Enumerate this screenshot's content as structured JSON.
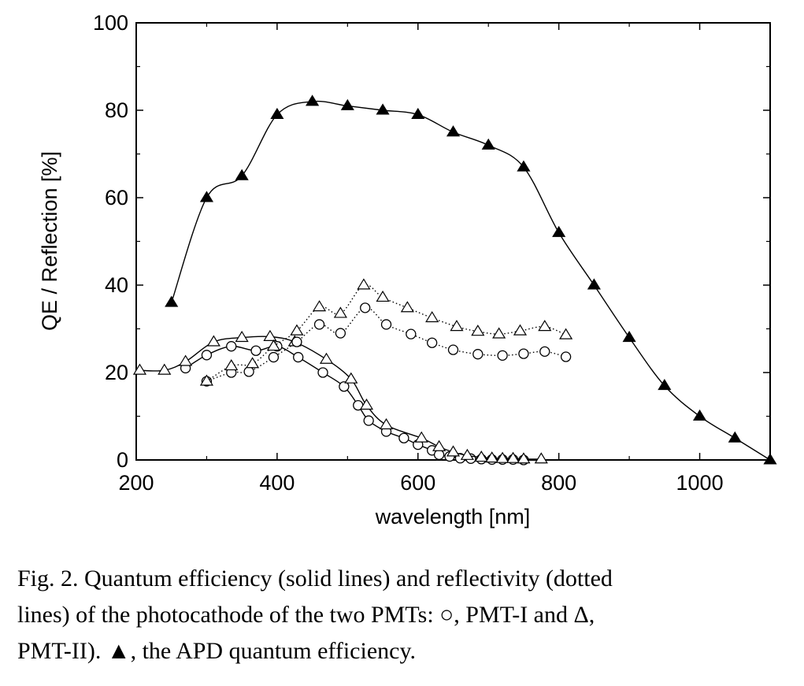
{
  "chart_data": {
    "type": "line",
    "title": "",
    "xlabel": "wavelength [nm]",
    "ylabel": "QE / Reflection  [%]",
    "xlim": [
      200,
      1100
    ],
    "ylim": [
      0,
      100
    ],
    "xticks": [
      200,
      400,
      600,
      800,
      1000
    ],
    "yticks": [
      0,
      20,
      40,
      60,
      80,
      100
    ],
    "grid": false,
    "legend": "none",
    "series": [
      {
        "key": "apd_qe",
        "line": "solid",
        "marker": "filled-triangle",
        "color": "#000000",
        "points": [
          [
            250,
            36
          ],
          [
            300,
            60
          ],
          [
            350,
            65
          ],
          [
            400,
            79
          ],
          [
            450,
            82
          ],
          [
            500,
            81
          ],
          [
            550,
            80
          ],
          [
            600,
            79
          ],
          [
            650,
            75
          ],
          [
            700,
            72
          ],
          [
            750,
            67
          ],
          [
            800,
            52
          ],
          [
            850,
            40
          ],
          [
            900,
            28
          ],
          [
            950,
            17
          ],
          [
            1000,
            10
          ],
          [
            1050,
            5
          ],
          [
            1100,
            0
          ]
        ]
      },
      {
        "key": "pmt1_qe",
        "line": "solid",
        "marker": "open-circle",
        "color": "#000000",
        "points": [
          [
            270,
            21
          ],
          [
            300,
            24
          ],
          [
            335,
            26
          ],
          [
            370,
            25
          ],
          [
            400,
            26
          ],
          [
            430,
            23.5
          ],
          [
            465,
            20
          ],
          [
            495,
            16.8
          ],
          [
            515,
            12.5
          ],
          [
            530,
            9
          ],
          [
            555,
            6.5
          ],
          [
            580,
            5
          ],
          [
            600,
            3.5
          ],
          [
            620,
            2.2
          ],
          [
            630,
            1.2
          ],
          [
            645,
            0.8
          ],
          [
            660,
            0.4
          ],
          [
            675,
            0.3
          ],
          [
            690,
            0.2
          ],
          [
            705,
            0.1
          ],
          [
            720,
            0.1
          ],
          [
            735,
            0.1
          ],
          [
            750,
            0
          ]
        ]
      },
      {
        "key": "pmt2_qe",
        "line": "solid",
        "marker": "open-triangle",
        "color": "#000000",
        "points": [
          [
            205,
            20.5
          ],
          [
            240,
            20.5
          ],
          [
            270,
            22.5
          ],
          [
            310,
            27
          ],
          [
            350,
            28
          ],
          [
            390,
            28.2
          ],
          [
            425,
            27
          ],
          [
            470,
            23
          ],
          [
            505,
            18.5
          ],
          [
            527,
            12.5
          ],
          [
            555,
            8
          ],
          [
            605,
            5
          ],
          [
            630,
            3
          ],
          [
            650,
            1.8
          ],
          [
            670,
            1
          ],
          [
            690,
            0.6
          ],
          [
            705,
            0.4
          ],
          [
            720,
            0.3
          ],
          [
            735,
            0.3
          ],
          [
            750,
            0.2
          ],
          [
            775,
            0.2
          ]
        ]
      },
      {
        "key": "pmt1_reflectivity",
        "line": "dotted",
        "marker": "open-circle",
        "color": "#000000",
        "points": [
          [
            300,
            18
          ],
          [
            335,
            20
          ],
          [
            360,
            20.2
          ],
          [
            395,
            23.5
          ],
          [
            428,
            27
          ],
          [
            460,
            31
          ],
          [
            490,
            29
          ],
          [
            525,
            34.8
          ],
          [
            555,
            31
          ],
          [
            590,
            28.8
          ],
          [
            620,
            26.8
          ],
          [
            650,
            25.2
          ],
          [
            685,
            24.2
          ],
          [
            720,
            23.9
          ],
          [
            750,
            24.3
          ],
          [
            780,
            24.8
          ],
          [
            810,
            23.6
          ]
        ]
      },
      {
        "key": "pmt2_reflectivity",
        "line": "dotted",
        "marker": "open-triangle",
        "color": "#000000",
        "points": [
          [
            300,
            18
          ],
          [
            335,
            21.5
          ],
          [
            365,
            22
          ],
          [
            395,
            26
          ],
          [
            428,
            29.5
          ],
          [
            460,
            35
          ],
          [
            490,
            33.5
          ],
          [
            523,
            40
          ],
          [
            550,
            37.2
          ],
          [
            585,
            34.8
          ],
          [
            620,
            32.5
          ],
          [
            655,
            30.5
          ],
          [
            685,
            29.4
          ],
          [
            715,
            28.8
          ],
          [
            745,
            29.5
          ],
          [
            780,
            30.5
          ],
          [
            810,
            28.6
          ]
        ]
      }
    ]
  },
  "caption": {
    "line1": "Fig. 2.  Quantum efficiency (solid lines) and reflectivity (dotted",
    "line2": "lines) of the photocathode of the two PMTs: ○, PMT-I and Δ,",
    "line3": "PMT-II). ▲, the APD quantum efficiency."
  }
}
